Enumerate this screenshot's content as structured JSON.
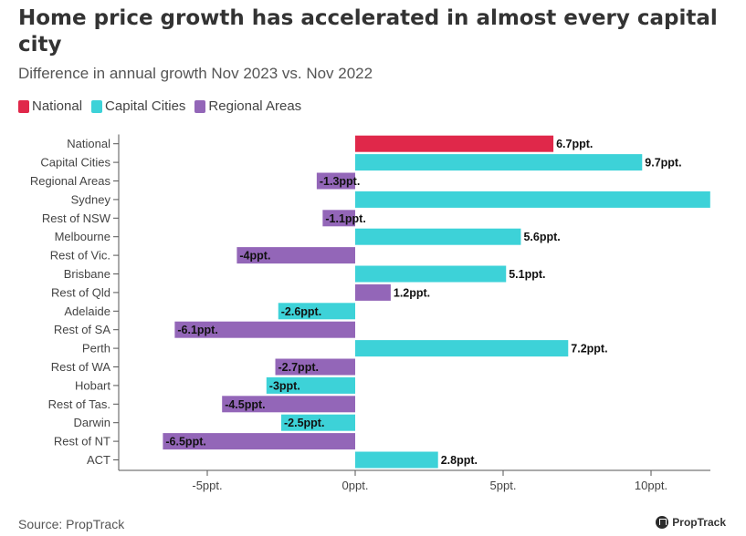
{
  "title": "Home price growth has accelerated in almost every capital city",
  "subtitle": "Difference in annual growth Nov 2023 vs. Nov 2022",
  "legend": [
    {
      "label": "National",
      "color": "#e0284a"
    },
    {
      "label": "Capital Cities",
      "color": "#3dd2d8"
    },
    {
      "label": "Regional Areas",
      "color": "#9366b8"
    }
  ],
  "source": "Source: PropTrack",
  "brand": "PropTrack",
  "chart_data": {
    "type": "bar",
    "orientation": "horizontal",
    "x_ticks": [
      -5,
      0,
      5,
      10
    ],
    "x_tick_labels": [
      "-5ppt.",
      "0ppt.",
      "5ppt.",
      "10ppt."
    ],
    "xlim": [
      -8,
      12
    ],
    "unit_suffix": "ppt.",
    "categories": [
      "National",
      "Capital Cities",
      "Regional Areas",
      "Sydney",
      "Rest of NSW",
      "Melbourne",
      "Rest of Vic.",
      "Brisbane",
      "Rest of Qld",
      "Adelaide",
      "Rest of SA",
      "Perth",
      "Rest of WA",
      "Hobart",
      "Rest of Tas.",
      "Darwin",
      "Rest of NT",
      "ACT"
    ],
    "values": [
      6.7,
      9.7,
      -1.3,
      12.0,
      -1.1,
      5.6,
      -4,
      5.1,
      1.2,
      -2.6,
      -6.1,
      7.2,
      -2.7,
      -3,
      -4.5,
      -2.5,
      -6.5,
      2.8
    ],
    "value_labels": [
      "6.7ppt.",
      "9.7ppt.",
      "-1.3ppt.",
      "",
      "-1.1ppt.",
      "5.6ppt.",
      "-4ppt.",
      "5.1ppt.",
      "1.2ppt.",
      "-2.6ppt.",
      "-6.1ppt.",
      "7.2ppt.",
      "-2.7ppt.",
      "-3ppt.",
      "-4.5ppt.",
      "-2.5ppt.",
      "-6.5ppt.",
      "2.8ppt."
    ],
    "groups": [
      "National",
      "Capital Cities",
      "Regional Areas",
      "Capital Cities",
      "Regional Areas",
      "Capital Cities",
      "Regional Areas",
      "Capital Cities",
      "Regional Areas",
      "Capital Cities",
      "Regional Areas",
      "Capital Cities",
      "Regional Areas",
      "Capital Cities",
      "Regional Areas",
      "Capital Cities",
      "Regional Areas",
      "Capital Cities"
    ],
    "colors": {
      "National": "#e0284a",
      "Capital Cities": "#3dd2d8",
      "Regional Areas": "#9366b8"
    },
    "grid": false
  }
}
